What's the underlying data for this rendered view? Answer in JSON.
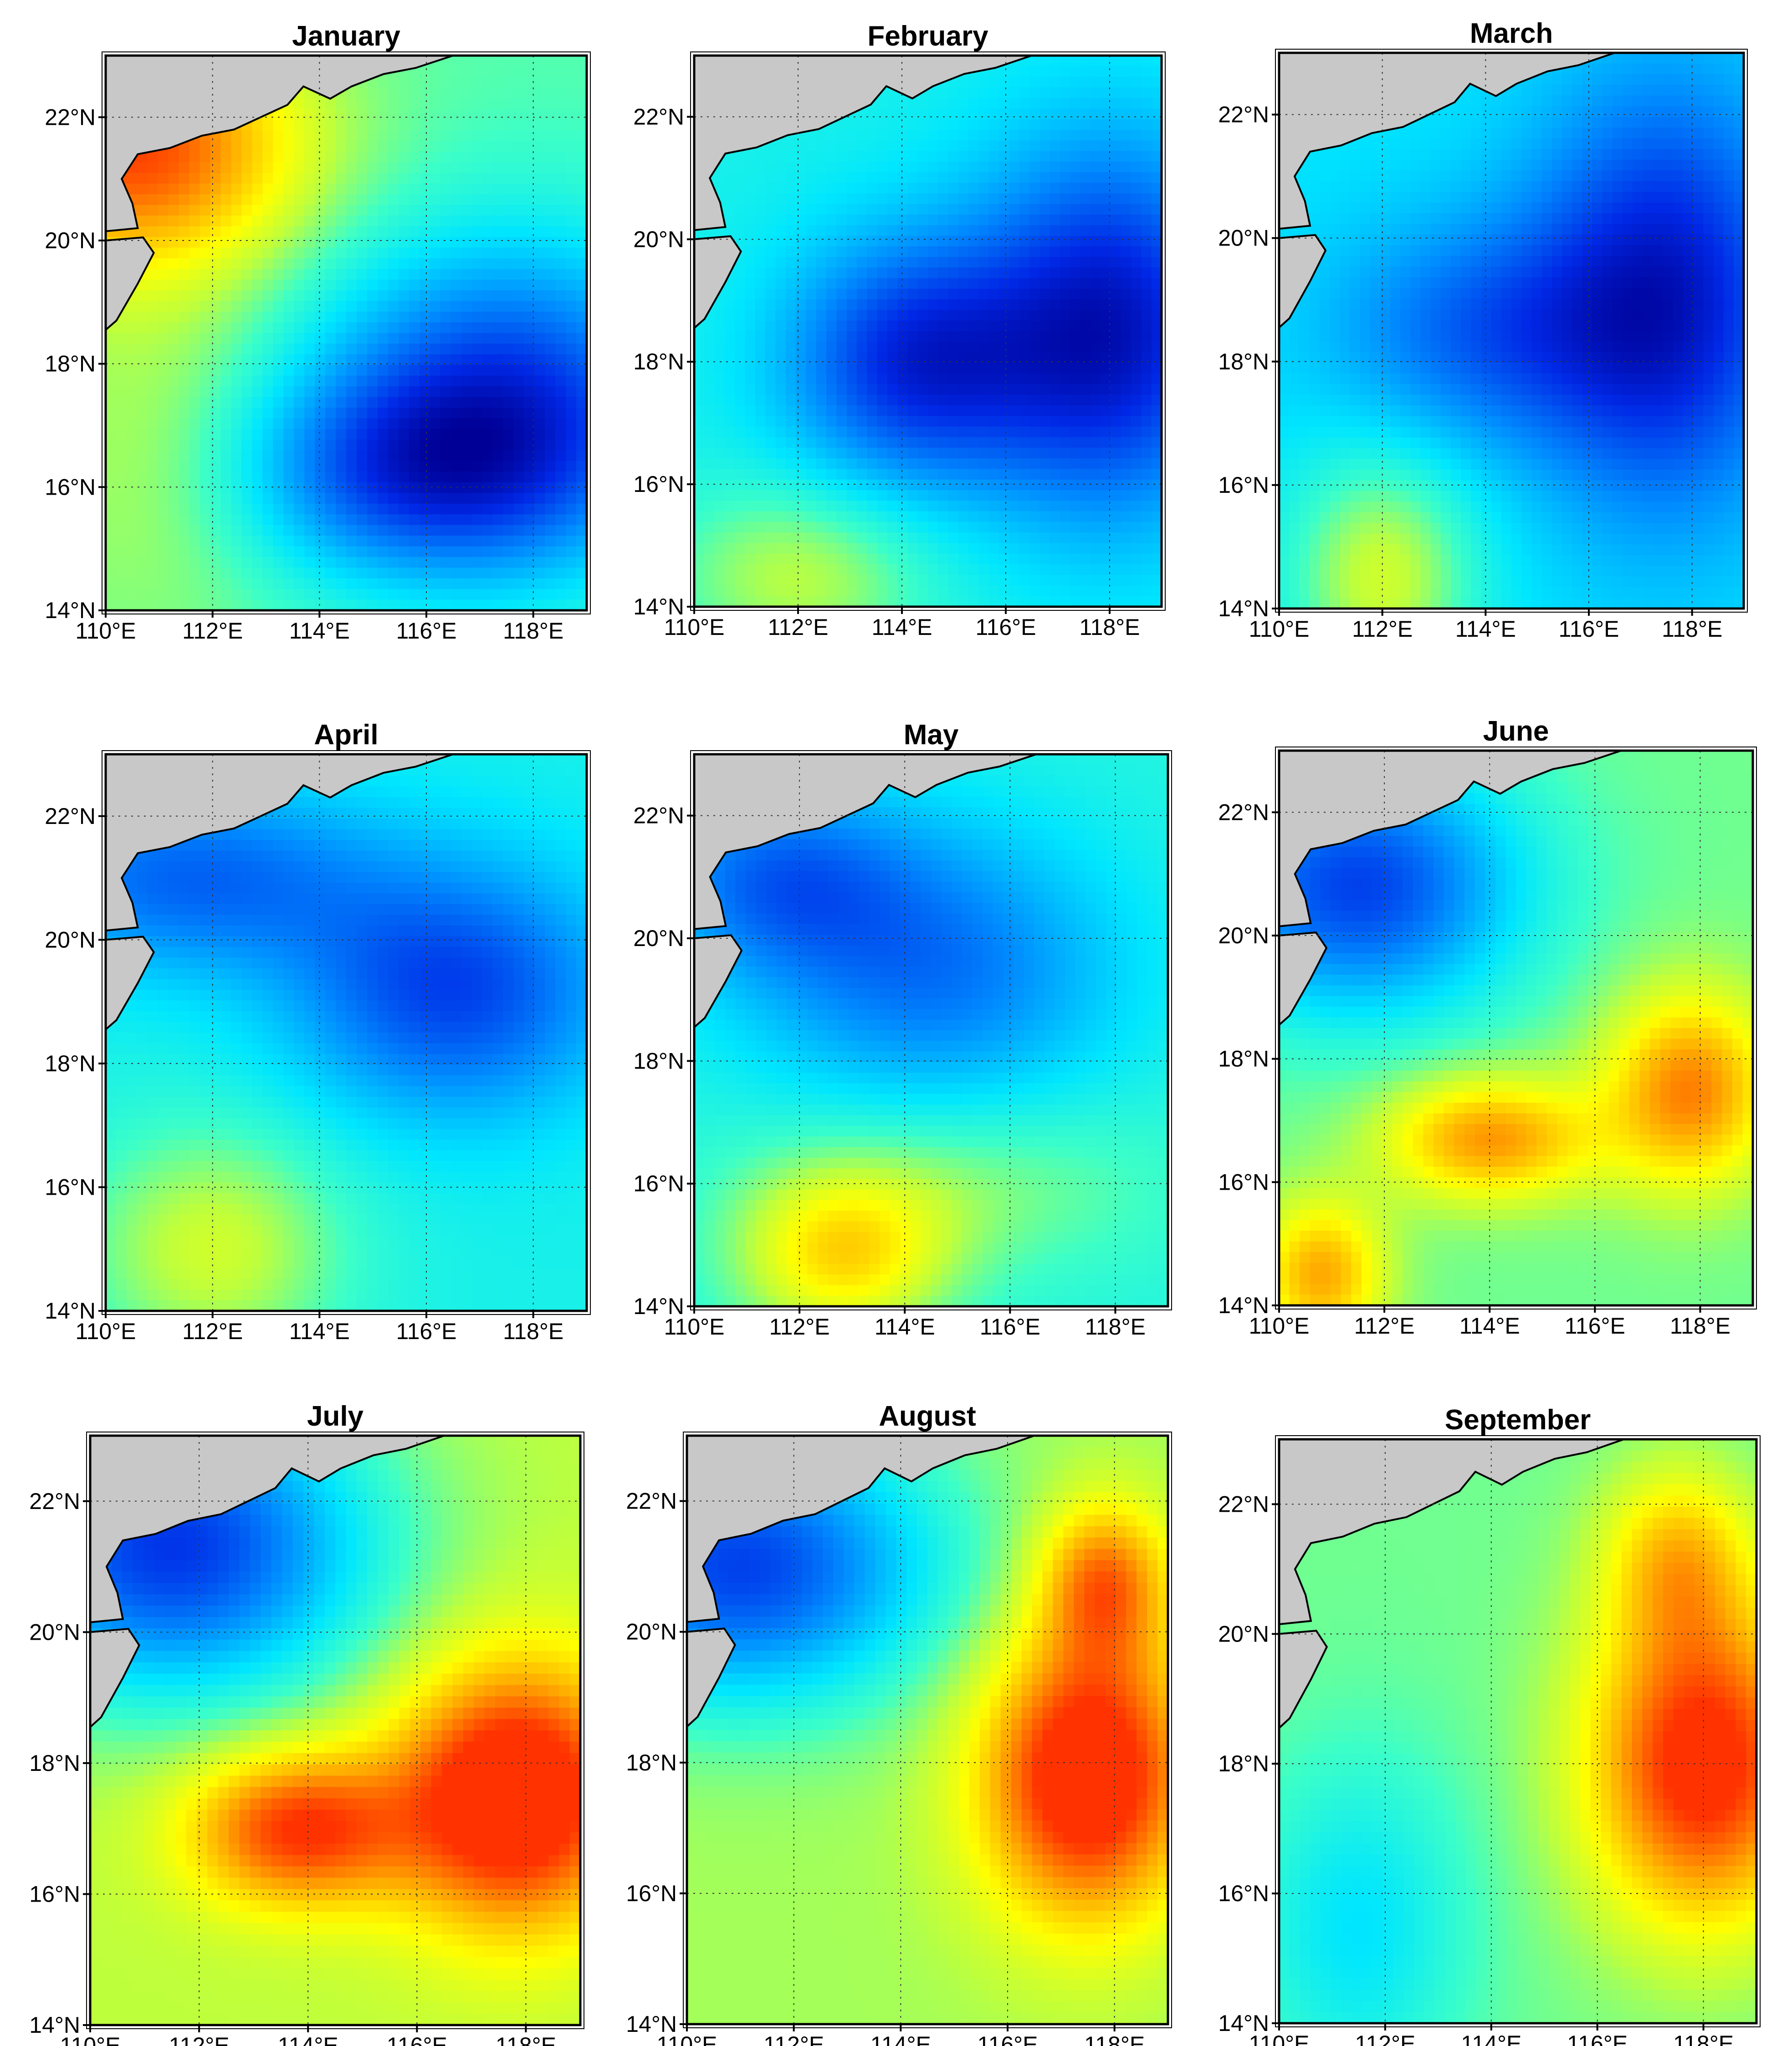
{
  "figure": {
    "lon_ticks": [
      "110°E",
      "112°E",
      "114°E",
      "116°E",
      "118°E"
    ],
    "lat_ticks": [
      "22°N",
      "20°N",
      "18°N",
      "16°N",
      "14°N"
    ],
    "lon_range": [
      110,
      119
    ],
    "lat_range": [
      14,
      23
    ],
    "colors": {
      "land": "#c8c8c8",
      "coastline": "#000000",
      "low": "#0000b0",
      "mid": "#00ffff",
      "high": "#ff3000"
    }
  },
  "panels": [
    {
      "title": "January",
      "blobs": [
        {
          "lon": 117.5,
          "lat": 17.3,
          "v": -1.0,
          "rx": 3.5,
          "ry": 2.6
        },
        {
          "lon": 115.5,
          "lat": 16.2,
          "v": -0.6,
          "rx": 3.2,
          "ry": 1.6
        },
        {
          "lon": 110.5,
          "lat": 21.5,
          "v": 0.9,
          "rx": 3.2,
          "ry": 2.0
        },
        {
          "lon": 111.0,
          "lat": 16.5,
          "v": 0.2,
          "rx": 2.5,
          "ry": 3.0
        }
      ],
      "base": 0.15
    },
    {
      "title": "February",
      "blobs": [
        {
          "lon": 118.0,
          "lat": 18.5,
          "v": -1.0,
          "rx": 2.6,
          "ry": 3.0
        },
        {
          "lon": 114.2,
          "lat": 18.0,
          "v": -0.85,
          "rx": 2.4,
          "ry": 2.0
        },
        {
          "lon": 112.0,
          "lat": 14.5,
          "v": 0.4,
          "rx": 2.5,
          "ry": 1.5
        }
      ],
      "base": -0.05
    },
    {
      "title": "March",
      "blobs": [
        {
          "lon": 117.5,
          "lat": 19.0,
          "v": -0.85,
          "rx": 2.6,
          "ry": 3.5
        },
        {
          "lon": 114.0,
          "lat": 18.5,
          "v": -0.5,
          "rx": 3.0,
          "ry": 1.8
        },
        {
          "lon": 112.0,
          "lat": 14.5,
          "v": 0.55,
          "rx": 1.8,
          "ry": 2.0
        }
      ],
      "base": -0.15
    },
    {
      "title": "April",
      "blobs": [
        {
          "lon": 116.5,
          "lat": 19.2,
          "v": -0.75,
          "rx": 3.0,
          "ry": 2.0
        },
        {
          "lon": 111.5,
          "lat": 21.0,
          "v": -0.6,
          "rx": 3.5,
          "ry": 1.5
        },
        {
          "lon": 112.0,
          "lat": 15.0,
          "v": 0.45,
          "rx": 2.5,
          "ry": 2.0
        }
      ],
      "base": -0.05
    },
    {
      "title": "May",
      "blobs": [
        {
          "lon": 114.5,
          "lat": 19.5,
          "v": -0.6,
          "rx": 3.5,
          "ry": 2.3
        },
        {
          "lon": 111.5,
          "lat": 21.0,
          "v": -0.55,
          "rx": 2.5,
          "ry": 1.5
        },
        {
          "lon": 112.8,
          "lat": 14.8,
          "v": 0.6,
          "rx": 2.0,
          "ry": 1.4
        },
        {
          "lon": 115.0,
          "lat": 16.0,
          "v": 0.25,
          "rx": 4.0,
          "ry": 1.5
        }
      ],
      "base": 0.0
    },
    {
      "title": "June",
      "blobs": [
        {
          "lon": 111.5,
          "lat": 20.8,
          "v": -1.0,
          "rx": 3.0,
          "ry": 2.0
        },
        {
          "lon": 114.0,
          "lat": 16.7,
          "v": 0.65,
          "rx": 2.0,
          "ry": 1.0
        },
        {
          "lon": 117.8,
          "lat": 17.5,
          "v": 0.7,
          "rx": 1.6,
          "ry": 1.6
        },
        {
          "lon": 110.8,
          "lat": 14.5,
          "v": 0.6,
          "rx": 1.2,
          "ry": 1.2
        }
      ],
      "base": 0.2
    },
    {
      "title": "July",
      "blobs": [
        {
          "lon": 111.5,
          "lat": 21.3,
          "v": -1.2,
          "rx": 3.5,
          "ry": 2.2
        },
        {
          "lon": 117.8,
          "lat": 17.5,
          "v": 1.0,
          "rx": 2.2,
          "ry": 2.0
        },
        {
          "lon": 113.8,
          "lat": 17.0,
          "v": 0.75,
          "rx": 2.0,
          "ry": 1.2
        }
      ],
      "base": 0.35
    },
    {
      "title": "August",
      "blobs": [
        {
          "lon": 111.0,
          "lat": 21.0,
          "v": -1.1,
          "rx": 3.5,
          "ry": 2.0
        },
        {
          "lon": 117.5,
          "lat": 17.8,
          "v": 1.0,
          "rx": 2.0,
          "ry": 2.2
        },
        {
          "lon": 117.8,
          "lat": 20.8,
          "v": 0.6,
          "rx": 1.2,
          "ry": 1.2
        }
      ],
      "base": 0.3
    },
    {
      "title": "September",
      "blobs": [
        {
          "lon": 118.0,
          "lat": 18.0,
          "v": 1.0,
          "rx": 2.2,
          "ry": 2.5
        },
        {
          "lon": 117.5,
          "lat": 21.2,
          "v": 0.45,
          "rx": 1.4,
          "ry": 1.4
        },
        {
          "lon": 111.5,
          "lat": 15.5,
          "v": -0.35,
          "rx": 2.0,
          "ry": 2.5
        }
      ],
      "base": 0.2
    }
  ]
}
